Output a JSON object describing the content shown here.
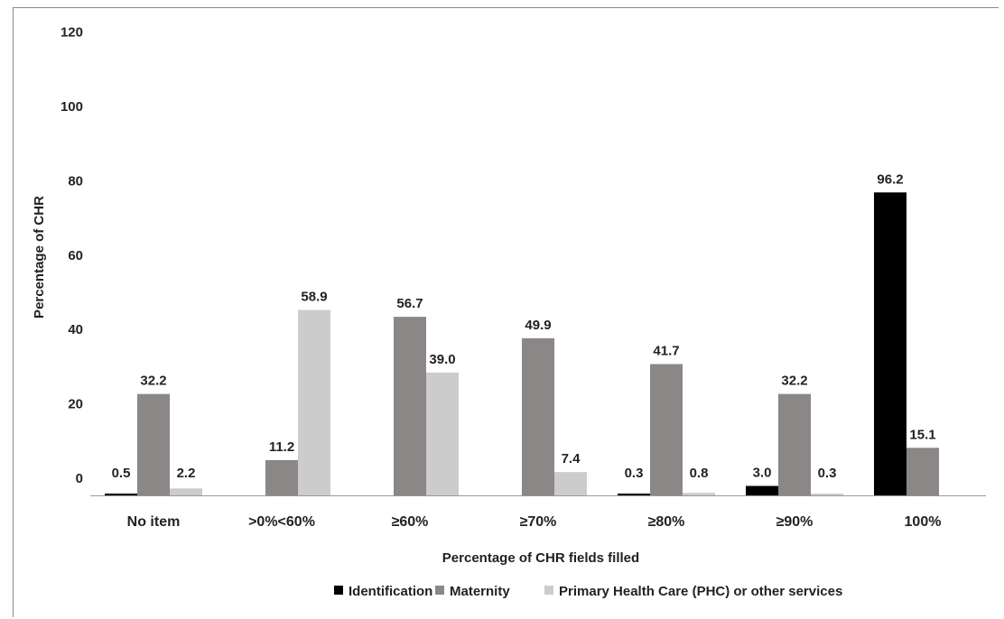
{
  "chart_data": {
    "type": "bar",
    "categories": [
      "No item",
      ">0%<60%",
      "≥60%",
      "≥70%",
      "≥80%",
      "≥90%",
      "100%"
    ],
    "series": [
      {
        "name": "Identification",
        "color": "#000000",
        "values": [
          0.5,
          null,
          null,
          null,
          0.3,
          3.0,
          96.2
        ]
      },
      {
        "name": "Maternity",
        "color": "#8a8786",
        "values": [
          32.2,
          11.2,
          56.7,
          49.9,
          41.7,
          32.2,
          15.1
        ]
      },
      {
        "name": "Primary Health Care (PHC) or other services",
        "color": "#cccccc",
        "values": [
          2.2,
          58.9,
          39.0,
          7.4,
          0.8,
          0.3,
          null
        ]
      }
    ],
    "ytick_labels": [
      "0",
      "20",
      "40",
      "60",
      "80",
      "100",
      "120"
    ],
    "ylim": [
      0,
      120
    ],
    "xlabel": "Percentage of CHR fields filled",
    "ylabel": "Percentage of CHR",
    "legend_position": "bottom",
    "grid": false
  }
}
